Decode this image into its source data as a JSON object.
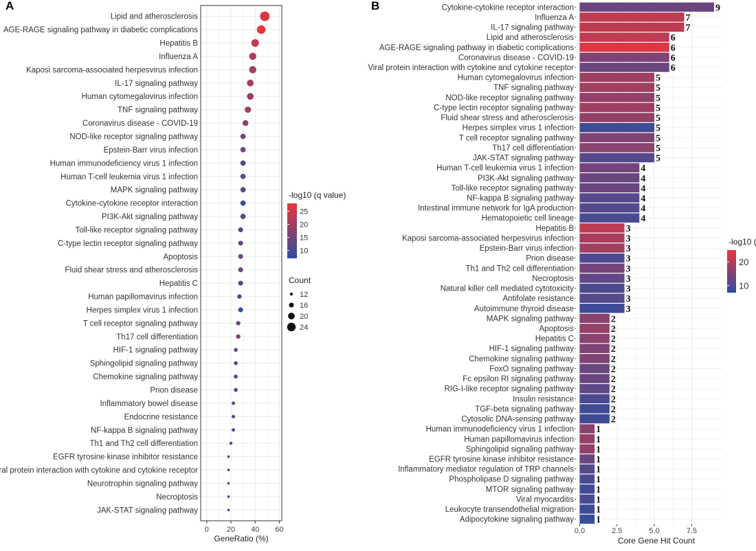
{
  "colors": {
    "low": "#2b4ea2",
    "high": "#e8353a",
    "grid": "#ebebeb",
    "panel_border": "#333333"
  },
  "chart_data": [
    {
      "panel": "A",
      "type": "scatter",
      "xlabel": "GeneRatio (%)",
      "xlim": [
        -5,
        62
      ],
      "xticks": [
        0,
        20,
        40,
        60
      ],
      "color_legend": {
        "title": "-log10 (q value)",
        "min": 7,
        "max": 28,
        "ticks": [
          25,
          20,
          15,
          10
        ]
      },
      "size_legend": {
        "title": "Count",
        "values": [
          12,
          16,
          20,
          24
        ]
      },
      "categories": [
        "Lipid and atherosclerosis",
        "AGE-RAGE signaling pathway in diabetic complications",
        "Hepatitis B",
        "Influenza A",
        "Kaposi sarcoma-associated herpesvirus infection",
        "IL-17 signaling pathway",
        "Human cytomegalovirus infection",
        "TNF signaling pathway",
        "Coronavirus disease - COVID-19",
        "NOD-like receptor signaling pathway",
        "Epstein-Barr virus infection",
        "Human immunodeficiency virus 1 infection",
        "Human T-cell leukemia virus 1 infection",
        "MAPK signaling pathway",
        "Cytokine-cytokine receptor interaction",
        "PI3K-Akt signaling pathway",
        "Toll-like receptor signaling pathway",
        "C-type lectin receptor signaling pathway",
        "Apoptosis",
        "Fluid shear stress and atherosclerosis",
        "Hepatitis C",
        "Human papillomavirus infection",
        "Herpes simplex virus 1 infection",
        "T cell receptor signaling pathway",
        "Th17 cell differentiation",
        "HIF-1 signaling pathway",
        "Sphingolipid signaling pathway",
        "Chemokine signaling pathway",
        "Prion disease",
        "Inflammatory bowel disease",
        "Endocrine resistance",
        "NF-kappa B signaling pathway",
        "Th1 and Th2 cell differentiation",
        "EGFR tyrosine kinase inhibitor resistance",
        "Viral protein interaction with cytokine and cytokine receptor",
        "Neurotrophin signaling pathway",
        "Necroptosis",
        "JAK-STAT signaling pathway"
      ],
      "x": [
        48,
        45,
        40,
        38,
        38,
        36,
        36,
        34,
        32,
        30,
        30,
        30,
        30,
        30,
        30,
        30,
        28,
        28,
        28,
        28,
        28,
        27,
        28,
        26,
        26,
        24,
        24,
        24,
        24,
        22,
        22,
        22,
        20,
        18,
        18,
        18,
        18,
        18
      ],
      "qvalue": [
        26,
        28,
        24,
        22,
        20,
        20,
        18,
        20,
        18,
        14,
        14,
        12,
        13,
        12,
        10,
        12,
        12,
        13,
        14,
        13,
        12,
        12,
        8,
        15,
        16,
        13,
        12,
        11,
        10,
        14,
        13,
        12,
        10,
        9,
        8,
        8,
        8,
        7
      ],
      "count": [
        26,
        24,
        22,
        21,
        21,
        20,
        20,
        19,
        18,
        17,
        17,
        17,
        17,
        17,
        17,
        17,
        16,
        16,
        16,
        16,
        16,
        15,
        16,
        15,
        15,
        14,
        14,
        14,
        14,
        13,
        13,
        13,
        12,
        11,
        11,
        11,
        11,
        11
      ]
    },
    {
      "panel": "B",
      "type": "bar",
      "xlabel": "Core Gene Hit Count",
      "xlim": [
        -0.25,
        9.6
      ],
      "xticks": [
        0.0,
        2.5,
        5.0,
        7.5
      ],
      "tick_labels": [
        "0.0",
        "2.5",
        "5.0",
        "7.5"
      ],
      "color_legend": {
        "title": "-log10 (",
        "min": 7,
        "max": 25,
        "ticks": [
          20,
          10
        ]
      },
      "categories": [
        "Cytokine-cytokine receptor interaction",
        "Influenza A",
        "IL-17 signaling pathway",
        "Lipid and atherosclerosis",
        "AGE-RAGE signaling pathway in diabetic complications",
        "Coronavirus disease - COVID-19",
        "Viral protein interaction with cytokine and cytokine receptor",
        "Human cytomegalovirus infection",
        "TNF signaling pathway",
        "NOD-like receptor signaling pathway",
        "C-type lectin receptor signaling pathway",
        "Fluid shear stress and atherosclerosis",
        "Herpes simplex virus 1 infection",
        "T cell receptor signaling pathway",
        "Th17 cell differentiation",
        "JAK-STAT signaling pathway",
        "Human T-cell leukemia virus 1 infection",
        "PI3K-Akt signaling pathway",
        "Toll-like receptor signaling pathway",
        "NF-kappa B signaling pathway",
        "Intestinal immune network for IgA production",
        "Hematopoietic cell lineage",
        "Hepatitis B",
        "Kaposi sarcoma-associated herpesvirus infection",
        "Epstein-Barr virus infection",
        "Prion disease",
        "Th1 and Th2 cell differentiation",
        "Necroptosis",
        "Natural killer cell mediated cytotoxicity",
        "Antifolate resistance",
        "Autoimmune thyroid disease",
        "MAPK signaling pathway",
        "Apoptosis",
        "Hepatitis C",
        "HIF-1 signaling pathway",
        "Chemokine signaling pathway",
        "FoxO signaling pathway",
        "Fc epsilon RI signaling pathway",
        "RIG-I-like receptor signaling pathway",
        "Insulin resistance",
        "TGF-beta signaling pathway",
        "Cytosolic DNA-sensing pathway",
        "Human immunodeficiency virus 1 infection",
        "Human papillomavirus infection",
        "Sphingolipid signaling pathway",
        "EGFR tyrosine kinase inhibitor resistance",
        "Inflammatory mediator regulation of TRP channels",
        "Phospholipase D signaling pathway",
        "MTOR signaling pathway",
        "Viral myocarditis",
        "Leukocyte transendothelial migration",
        "Adipocytokine signaling pathway"
      ],
      "values": [
        9,
        7,
        7,
        6,
        6,
        6,
        6,
        5,
        5,
        5,
        5,
        5,
        5,
        5,
        5,
        5,
        4,
        4,
        4,
        4,
        4,
        4,
        3,
        3,
        3,
        3,
        3,
        3,
        3,
        3,
        3,
        2,
        2,
        2,
        2,
        2,
        2,
        2,
        2,
        2,
        2,
        2,
        1,
        1,
        1,
        1,
        1,
        1,
        1,
        1,
        1,
        1
      ],
      "qvalue": [
        13,
        21,
        21,
        21,
        24,
        15,
        13,
        18,
        18,
        17,
        18,
        17,
        9,
        15,
        16,
        11,
        14,
        13,
        13,
        11,
        11,
        10,
        21,
        19,
        18,
        10,
        14,
        12,
        10,
        11,
        9,
        16,
        17,
        16,
        15,
        15,
        13,
        13,
        12,
        10,
        9,
        9,
        16,
        17,
        17,
        13,
        11,
        10,
        9,
        10,
        9,
        8
      ]
    }
  ]
}
